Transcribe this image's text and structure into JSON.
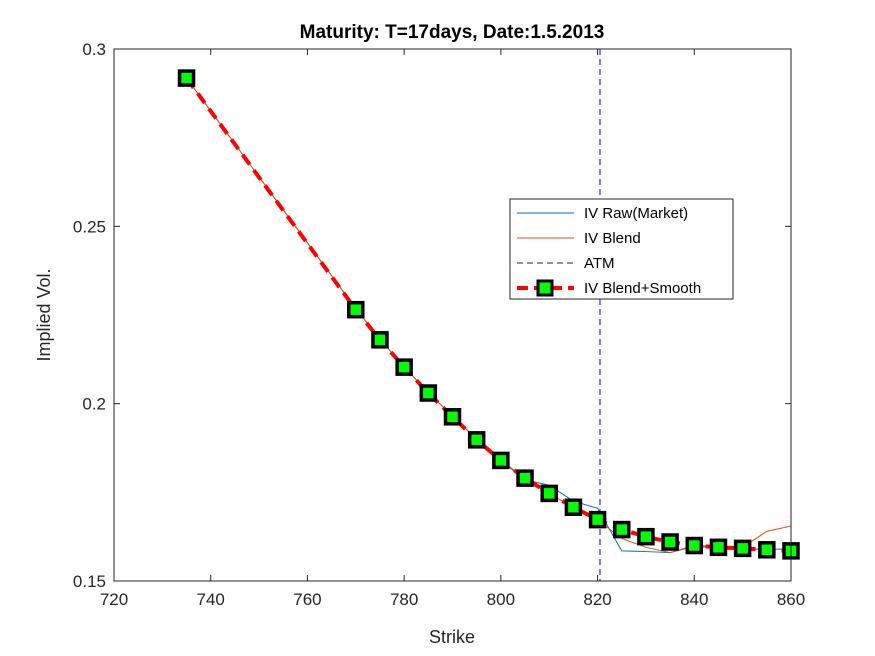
{
  "chart_data": {
    "type": "line",
    "title": "Maturity: T=17days, Date:1.5.2013",
    "xlabel": "Strike",
    "ylabel": "Implied Vol.",
    "xlim": [
      720,
      860
    ],
    "ylim": [
      0.15,
      0.3
    ],
    "xticks": [
      "720",
      "740",
      "760",
      "780",
      "800",
      "820",
      "840",
      "860"
    ],
    "yticks": [
      "0.15",
      "0.2",
      "0.25",
      "0.3"
    ],
    "grid": false,
    "legend_position": "center-right",
    "series": [
      {
        "name": "IV Raw(Market)",
        "color": "#0072BD",
        "x": [
          735,
          770,
          775,
          780,
          785,
          790,
          795,
          800,
          805,
          810,
          815,
          820,
          825,
          830,
          835,
          840,
          845,
          850,
          855,
          860
        ],
        "y": [
          0.2918,
          0.2268,
          0.2181,
          0.2104,
          0.2031,
          0.1965,
          0.19,
          0.184,
          0.1785,
          0.177,
          0.1725,
          0.1705,
          0.1585,
          0.1583,
          0.158,
          0.1598,
          0.1593,
          0.159,
          0.159,
          0.159
        ]
      },
      {
        "name": "IV Blend",
        "color": "#D95319",
        "x": [
          735,
          770,
          775,
          780,
          785,
          790,
          795,
          800,
          805,
          810,
          815,
          820,
          825,
          830,
          835,
          840,
          845,
          850,
          855,
          860
        ],
        "y": [
          0.2918,
          0.2268,
          0.2181,
          0.2104,
          0.2031,
          0.1965,
          0.19,
          0.184,
          0.179,
          0.1745,
          0.171,
          0.1672,
          0.162,
          0.1595,
          0.158,
          0.16,
          0.1598,
          0.1595,
          0.164,
          0.1655
        ]
      },
      {
        "name": "ATM",
        "color": "#0000FF",
        "type": "vline",
        "x": 820.5
      },
      {
        "name": "IV Blend+Smooth",
        "color": "#FF0000",
        "marker_fill": "#00FF00",
        "marker_edge": "#000000",
        "x": [
          735,
          770,
          775,
          780,
          785,
          790,
          795,
          800,
          805,
          810,
          815,
          820,
          825,
          830,
          835,
          840,
          845,
          850,
          855,
          860
        ],
        "y": [
          0.2918,
          0.2265,
          0.218,
          0.2103,
          0.203,
          0.1963,
          0.1898,
          0.184,
          0.179,
          0.1747,
          0.1708,
          0.1673,
          0.1645,
          0.1625,
          0.161,
          0.16,
          0.1595,
          0.1592,
          0.1588,
          0.1585
        ]
      }
    ]
  }
}
